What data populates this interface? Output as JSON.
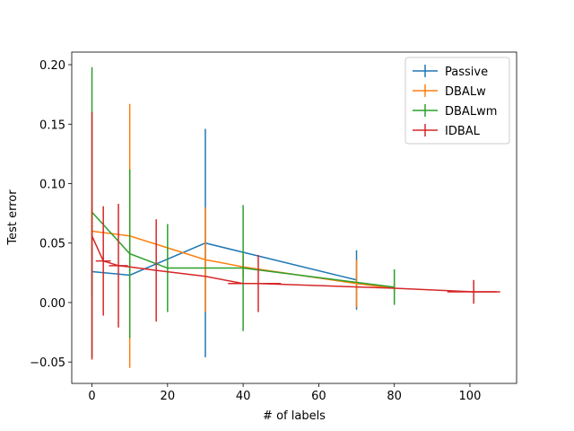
{
  "chart_data": {
    "type": "errorbar",
    "xlabel": "# of labels",
    "ylabel": "Test error",
    "xlim": [
      -5.35,
      112.35
    ],
    "ylim": [
      -0.068,
      0.2106
    ],
    "xticks": [
      0,
      20,
      40,
      60,
      80,
      100
    ],
    "yticks": [
      {
        "value": -0.05,
        "label": "−0.05"
      },
      {
        "value": 0,
        "label": "0.00"
      },
      {
        "value": 0.05,
        "label": "0.05"
      },
      {
        "value": 0.1,
        "label": "0.10"
      },
      {
        "value": 0.15,
        "label": "0.15"
      },
      {
        "value": 0.2,
        "label": "0.20"
      }
    ],
    "legend": "upper right",
    "series": [
      {
        "name": "Passive",
        "color": "#1f77b4",
        "x": [
          0,
          10,
          30,
          70
        ],
        "values": [
          0.026,
          0.023,
          0.05,
          0.019
        ],
        "yerr": [
          0.02,
          0.01,
          0.096,
          0.025
        ],
        "xerr": [
          0,
          0,
          0,
          0
        ]
      },
      {
        "name": "DBALw",
        "color": "#ff7f0e",
        "x": [
          0,
          10,
          30,
          40,
          70,
          80
        ],
        "values": [
          0.06,
          0.056,
          0.036,
          0.03,
          0.016,
          0.012
        ],
        "yerr": [
          0.02,
          0.111,
          0.044,
          0.01,
          0.02,
          0.005
        ],
        "xerr": [
          0,
          0,
          0,
          0,
          0,
          0
        ]
      },
      {
        "name": "DBALwm",
        "color": "#2ca02c",
        "x": [
          0,
          10,
          20,
          40,
          80
        ],
        "values": [
          0.076,
          0.041,
          0.029,
          0.029,
          0.013
        ],
        "yerr": [
          0.122,
          0.071,
          0.037,
          0.053,
          0.015
        ],
        "xerr": [
          0,
          0,
          0,
          0,
          0
        ]
      },
      {
        "name": "IDBAL",
        "color": "#d62728",
        "x": [
          0,
          3,
          7,
          10,
          17,
          30,
          40,
          44,
          80,
          101,
          107
        ],
        "values": [
          0.056,
          0.035,
          0.031,
          0.03,
          0.027,
          0.022,
          0.016,
          0.016,
          0.012,
          0.009,
          0.009
        ],
        "yerr": [
          0.104,
          0.046,
          0.052,
          0,
          0.043,
          0,
          0,
          0.024,
          0,
          0.01,
          0
        ],
        "xerr": [
          0,
          2,
          2.5,
          0,
          0,
          0,
          4,
          6,
          0,
          7,
          0
        ]
      }
    ]
  }
}
